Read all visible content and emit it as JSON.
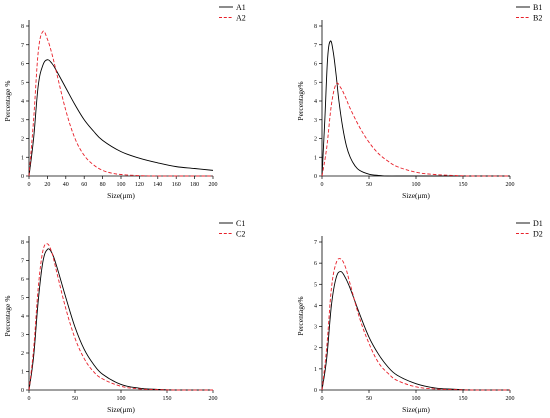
{
  "colors": {
    "black": "#000000",
    "red": "#e8202a",
    "axis": "#000000"
  },
  "chart_data": [
    {
      "type": "line",
      "xlabel": "Size(μm)",
      "ylabel": "Percentage %",
      "xlim": [
        0,
        200
      ],
      "ylim": [
        0,
        8
      ],
      "xticks": [
        0,
        20,
        40,
        60,
        80,
        100,
        120,
        140,
        160,
        180,
        200
      ],
      "yticks": [
        0,
        1,
        2,
        3,
        4,
        5,
        6,
        7,
        8
      ],
      "grid": false,
      "legend_position": "top-right",
      "series": [
        {
          "name": "A1",
          "style": "solid",
          "color": "#000000",
          "x": [
            0,
            5,
            10,
            15,
            20,
            25,
            30,
            40,
            50,
            60,
            70,
            80,
            100,
            120,
            140,
            160,
            180,
            200
          ],
          "y": [
            0,
            2.0,
            4.8,
            5.9,
            6.2,
            6.0,
            5.6,
            4.7,
            3.8,
            3.0,
            2.4,
            1.9,
            1.3,
            0.95,
            0.7,
            0.5,
            0.4,
            0.3
          ]
        },
        {
          "name": "A2",
          "style": "dashed",
          "color": "#e8202a",
          "x": [
            0,
            5,
            10,
            15,
            20,
            25,
            30,
            40,
            50,
            60,
            70,
            80,
            90,
            100,
            120,
            140,
            160,
            200
          ],
          "y": [
            0,
            3.0,
            6.6,
            7.7,
            7.3,
            6.5,
            5.5,
            3.5,
            2.0,
            1.1,
            0.6,
            0.3,
            0.15,
            0.08,
            0.02,
            0,
            0,
            0
          ]
        }
      ]
    },
    {
      "type": "line",
      "xlabel": "Size(μm)",
      "ylabel": "Percentage%",
      "xlim": [
        0,
        200
      ],
      "ylim": [
        0,
        8
      ],
      "xticks": [
        0,
        50,
        100,
        150,
        200
      ],
      "yticks": [
        0,
        1,
        2,
        3,
        4,
        5,
        6,
        7,
        8
      ],
      "grid": false,
      "legend_position": "top-right",
      "series": [
        {
          "name": "B1",
          "style": "solid",
          "color": "#000000",
          "x": [
            0,
            3,
            6,
            9,
            12,
            15,
            18,
            22,
            26,
            30,
            35,
            40,
            50,
            60,
            70,
            80,
            100,
            200
          ],
          "y": [
            0,
            3.0,
            6.3,
            7.2,
            6.6,
            5.4,
            4.0,
            2.6,
            1.6,
            1.0,
            0.55,
            0.3,
            0.1,
            0.03,
            0,
            0,
            0,
            0
          ]
        },
        {
          "name": "B2",
          "style": "dashed",
          "color": "#e8202a",
          "x": [
            0,
            5,
            10,
            15,
            20,
            25,
            30,
            40,
            50,
            60,
            70,
            80,
            100,
            120,
            140,
            160,
            200
          ],
          "y": [
            0,
            1.5,
            3.8,
            4.9,
            4.7,
            4.2,
            3.6,
            2.6,
            1.8,
            1.2,
            0.8,
            0.5,
            0.2,
            0.08,
            0.03,
            0,
            0
          ]
        }
      ]
    },
    {
      "type": "line",
      "xlabel": "Size(μm)",
      "ylabel": "Percentage %",
      "xlim": [
        0,
        200
      ],
      "ylim": [
        0,
        8
      ],
      "xticks": [
        0,
        50,
        100,
        150,
        200
      ],
      "yticks": [
        0,
        1,
        2,
        3,
        4,
        5,
        6,
        7,
        8
      ],
      "grid": false,
      "legend_position": "top-right",
      "series": [
        {
          "name": "C1",
          "style": "solid",
          "color": "#000000",
          "x": [
            0,
            5,
            10,
            15,
            20,
            25,
            30,
            40,
            50,
            60,
            70,
            80,
            100,
            120,
            140,
            160,
            200
          ],
          "y": [
            0,
            1.8,
            4.8,
            6.9,
            7.6,
            7.4,
            6.7,
            5.0,
            3.4,
            2.2,
            1.4,
            0.85,
            0.3,
            0.1,
            0.03,
            0,
            0
          ]
        },
        {
          "name": "C2",
          "style": "dashed",
          "color": "#e8202a",
          "x": [
            0,
            5,
            10,
            15,
            20,
            25,
            30,
            40,
            50,
            60,
            70,
            80,
            100,
            120,
            140,
            160,
            200
          ],
          "y": [
            0,
            2.2,
            5.5,
            7.5,
            7.9,
            7.4,
            6.4,
            4.4,
            2.8,
            1.7,
            1.0,
            0.6,
            0.2,
            0.06,
            0.02,
            0,
            0
          ]
        }
      ]
    },
    {
      "type": "line",
      "xlabel": "Size(μm)",
      "ylabel": "Percentage%",
      "xlim": [
        0,
        200
      ],
      "ylim": [
        0,
        7
      ],
      "xticks": [
        0,
        50,
        100,
        150,
        200
      ],
      "yticks": [
        0,
        1,
        2,
        3,
        4,
        5,
        6,
        7
      ],
      "grid": false,
      "legend_position": "top-right",
      "series": [
        {
          "name": "D1",
          "style": "solid",
          "color": "#000000",
          "x": [
            0,
            5,
            10,
            15,
            20,
            25,
            30,
            40,
            50,
            60,
            70,
            80,
            100,
            120,
            140,
            160,
            200
          ],
          "y": [
            0,
            1.5,
            4.0,
            5.3,
            5.6,
            5.3,
            4.8,
            3.6,
            2.5,
            1.7,
            1.1,
            0.7,
            0.3,
            0.1,
            0.04,
            0,
            0
          ]
        },
        {
          "name": "D2",
          "style": "dashed",
          "color": "#e8202a",
          "x": [
            0,
            5,
            10,
            15,
            20,
            25,
            30,
            40,
            50,
            60,
            70,
            80,
            100,
            120,
            140,
            160,
            200
          ],
          "y": [
            0,
            2.0,
            4.8,
            6.0,
            6.2,
            5.8,
            5.0,
            3.4,
            2.2,
            1.3,
            0.8,
            0.45,
            0.15,
            0.05,
            0.02,
            0,
            0
          ]
        }
      ]
    }
  ]
}
